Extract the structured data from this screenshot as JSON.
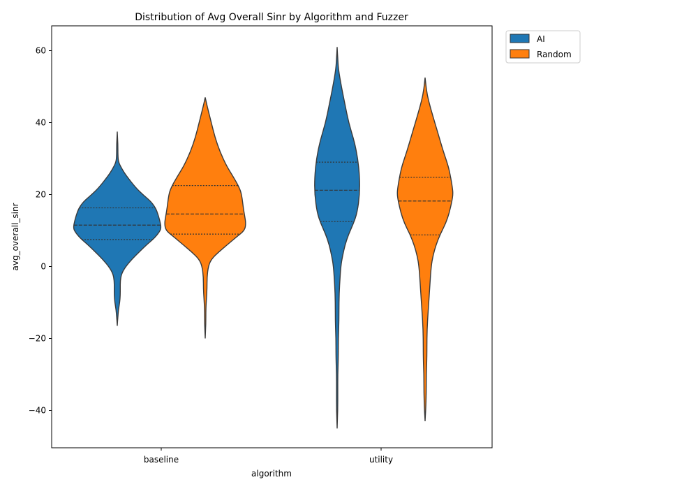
{
  "chart_data": {
    "type": "violin",
    "title": "Distribution of Avg Overall Sinr by Algorithm and Fuzzer",
    "xlabel": "algorithm",
    "ylabel": "avg_overall_sinr",
    "ylim": [
      -50,
      66
    ],
    "yticks": [
      -40,
      -20,
      0,
      20,
      40,
      60
    ],
    "ytick_labels": [
      "−40",
      "−20",
      "0",
      "20",
      "40",
      "60"
    ],
    "categories": [
      "baseline",
      "utility"
    ],
    "legend_position": "outside-top-right",
    "inner": "quartile",
    "series": [
      {
        "name": "AI",
        "color": "#1f77b4",
        "groups": [
          {
            "category": "baseline",
            "min": -16.5,
            "max": 37.5,
            "q1": 7.5,
            "median": 11.5,
            "q3": 16.3,
            "profile": [
              [
                37.5,
                0.0
              ],
              [
                34,
                0.01
              ],
              [
                31,
                0.01
              ],
              [
                29,
                0.02
              ],
              [
                27,
                0.08
              ],
              [
                25,
                0.16
              ],
              [
                22,
                0.3
              ],
              [
                20,
                0.42
              ],
              [
                18,
                0.56
              ],
              [
                16,
                0.64
              ],
              [
                14,
                0.68
              ],
              [
                12,
                0.71
              ],
              [
                11,
                0.72
              ],
              [
                10,
                0.71
              ],
              [
                8,
                0.62
              ],
              [
                6,
                0.48
              ],
              [
                4,
                0.36
              ],
              [
                2,
                0.24
              ],
              [
                0,
                0.14
              ],
              [
                -2,
                0.07
              ],
              [
                -4,
                0.05
              ],
              [
                -6,
                0.05
              ],
              [
                -8,
                0.05
              ],
              [
                -10,
                0.04
              ],
              [
                -12,
                0.02
              ],
              [
                -14,
                0.01
              ],
              [
                -16.5,
                0.0
              ]
            ]
          },
          {
            "category": "utility",
            "min": -45,
            "max": 61,
            "q1": 12.5,
            "median": 21.2,
            "q3": 29.0,
            "profile": [
              [
                61,
                0.0
              ],
              [
                58,
                0.01
              ],
              [
                55,
                0.02
              ],
              [
                50,
                0.07
              ],
              [
                45,
                0.13
              ],
              [
                40,
                0.19
              ],
              [
                35,
                0.28
              ],
              [
                30,
                0.34
              ],
              [
                25,
                0.37
              ],
              [
                20,
                0.37
              ],
              [
                15,
                0.33
              ],
              [
                12,
                0.27
              ],
              [
                9,
                0.19
              ],
              [
                6,
                0.13
              ],
              [
                3,
                0.09
              ],
              [
                0,
                0.06
              ],
              [
                -5,
                0.04
              ],
              [
                -10,
                0.03
              ],
              [
                -15,
                0.03
              ],
              [
                -20,
                0.02
              ],
              [
                -25,
                0.02
              ],
              [
                -30,
                0.01
              ],
              [
                -35,
                0.01
              ],
              [
                -40,
                0.01
              ],
              [
                -45,
                0.0
              ]
            ]
          }
        ]
      },
      {
        "name": "Random",
        "color": "#ff7f0e",
        "groups": [
          {
            "category": "baseline",
            "min": -20,
            "max": 47,
            "q1": 9.0,
            "median": 14.6,
            "q3": 22.5,
            "profile": [
              [
                47,
                0.0
              ],
              [
                44,
                0.04
              ],
              [
                40,
                0.1
              ],
              [
                36,
                0.16
              ],
              [
                32,
                0.24
              ],
              [
                28,
                0.35
              ],
              [
                25,
                0.46
              ],
              [
                22,
                0.56
              ],
              [
                20,
                0.6
              ],
              [
                16,
                0.63
              ],
              [
                14,
                0.65
              ],
              [
                12,
                0.67
              ],
              [
                10,
                0.65
              ],
              [
                8,
                0.5
              ],
              [
                6,
                0.36
              ],
              [
                4,
                0.22
              ],
              [
                2,
                0.1
              ],
              [
                0,
                0.05
              ],
              [
                -3,
                0.03
              ],
              [
                -6,
                0.03
              ],
              [
                -9,
                0.02
              ],
              [
                -12,
                0.01
              ],
              [
                -16,
                0.01
              ],
              [
                -20,
                0.0
              ]
            ]
          },
          {
            "category": "utility",
            "min": -43,
            "max": 52.5,
            "q1": 8.8,
            "median": 18.2,
            "q3": 24.8,
            "profile": [
              [
                52.5,
                0.0
              ],
              [
                48,
                0.03
              ],
              [
                44,
                0.09
              ],
              [
                40,
                0.16
              ],
              [
                36,
                0.23
              ],
              [
                32,
                0.3
              ],
              [
                28,
                0.38
              ],
              [
                25,
                0.42
              ],
              [
                22,
                0.45
              ],
              [
                20,
                0.46
              ],
              [
                18,
                0.44
              ],
              [
                15,
                0.4
              ],
              [
                12,
                0.34
              ],
              [
                9,
                0.25
              ],
              [
                6,
                0.18
              ],
              [
                3,
                0.13
              ],
              [
                0,
                0.1
              ],
              [
                -5,
                0.08
              ],
              [
                -10,
                0.06
              ],
              [
                -15,
                0.04
              ],
              [
                -20,
                0.03
              ],
              [
                -25,
                0.03
              ],
              [
                -30,
                0.02
              ],
              [
                -35,
                0.02
              ],
              [
                -40,
                0.01
              ],
              [
                -43,
                0.0
              ]
            ]
          }
        ]
      }
    ]
  }
}
